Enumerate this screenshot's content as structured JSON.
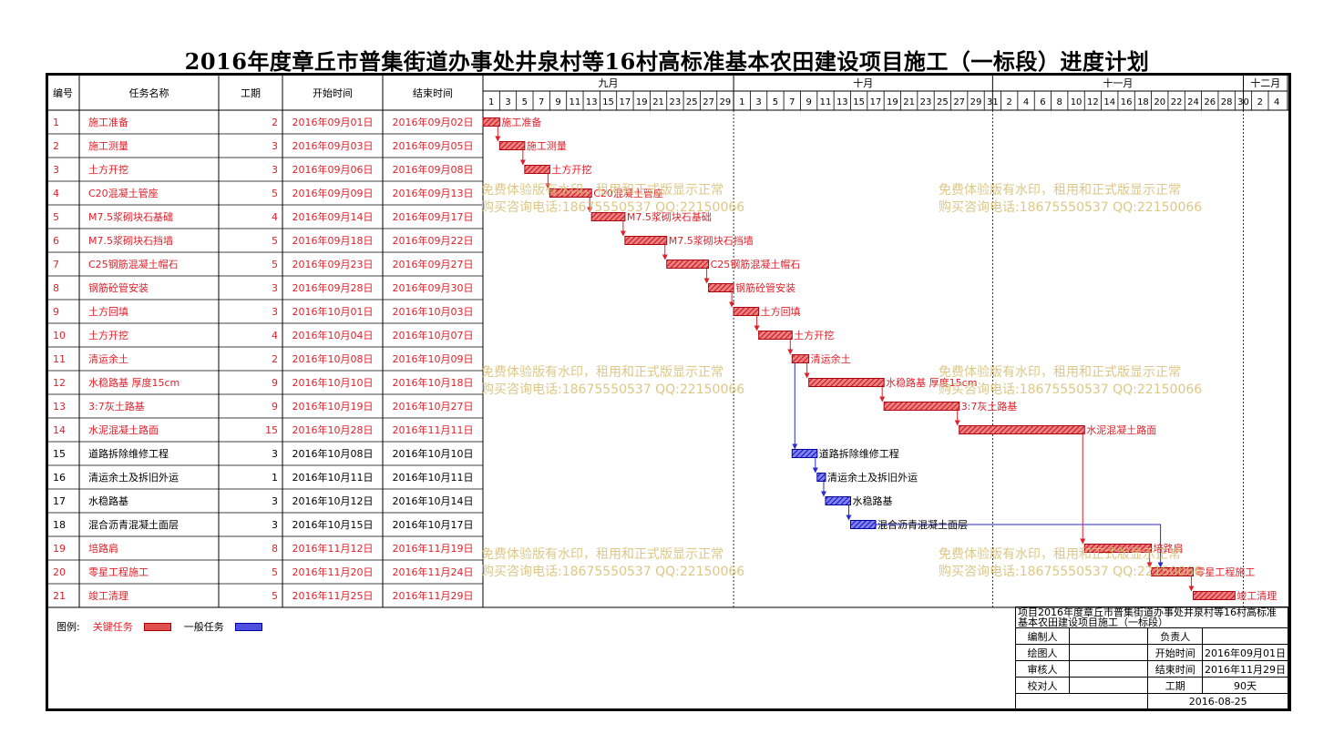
{
  "title": "2016年度章丘市普集街道办事处井泉村等16村高标准基本农田建设项目施工（一标段）进度计划",
  "colors": {
    "critical": "#e0202a",
    "general": "#2b2bd0",
    "watermark": "#d9c27a"
  },
  "table": {
    "headers": {
      "id": "编号",
      "name": "任务名称",
      "duration": "工期",
      "start": "开始时间",
      "end": "结束时间"
    }
  },
  "timeline": {
    "months": [
      "九月",
      "十月",
      "十一月",
      "十二月"
    ],
    "day_ticks": [
      {
        "m": 0,
        "d": [
          "1",
          "3",
          "5",
          "7",
          "9",
          "11",
          "13",
          "15",
          "17",
          "19",
          "21",
          "23",
          "25",
          "27",
          "29"
        ]
      },
      {
        "m": 1,
        "d": [
          "1",
          "3",
          "5",
          "7",
          "9",
          "11",
          "13",
          "15",
          "17",
          "19",
          "21",
          "23",
          "25",
          "27",
          "29",
          "31"
        ]
      },
      {
        "m": 2,
        "d": [
          "2",
          "4",
          "6",
          "8",
          "10",
          "12",
          "14",
          "16",
          "18",
          "20",
          "22",
          "24",
          "26",
          "28",
          "30"
        ]
      },
      {
        "m": 3,
        "d": [
          "2",
          "4"
        ]
      }
    ]
  },
  "chart_data": {
    "type": "gantt",
    "start_date": "2016-09-01",
    "tasks": [
      {
        "id": "1",
        "name": "施工准备",
        "duration": "2",
        "start": "2016年09月01日",
        "end": "2016年09月02日",
        "s": "2016-09-01",
        "e": "2016-09-02",
        "critical": true
      },
      {
        "id": "2",
        "name": "施工测量",
        "duration": "3",
        "start": "2016年09月03日",
        "end": "2016年09月05日",
        "s": "2016-09-03",
        "e": "2016-09-05",
        "critical": true
      },
      {
        "id": "3",
        "name": "土方开挖",
        "duration": "3",
        "start": "2016年09月06日",
        "end": "2016年09月08日",
        "s": "2016-09-06",
        "e": "2016-09-08",
        "critical": true
      },
      {
        "id": "4",
        "name": "C20混凝土管座",
        "duration": "5",
        "start": "2016年09月09日",
        "end": "2016年09月13日",
        "s": "2016-09-09",
        "e": "2016-09-13",
        "critical": true
      },
      {
        "id": "5",
        "name": "M7.5浆砌块石基础",
        "duration": "4",
        "start": "2016年09月14日",
        "end": "2016年09月17日",
        "s": "2016-09-14",
        "e": "2016-09-17",
        "critical": true
      },
      {
        "id": "6",
        "name": "M7.5浆砌块石挡墙",
        "duration": "5",
        "start": "2016年09月18日",
        "end": "2016年09月22日",
        "s": "2016-09-18",
        "e": "2016-09-22",
        "critical": true
      },
      {
        "id": "7",
        "name": "C25钢筋混凝土帽石",
        "duration": "5",
        "start": "2016年09月23日",
        "end": "2016年09月27日",
        "s": "2016-09-23",
        "e": "2016-09-27",
        "critical": true
      },
      {
        "id": "8",
        "name": "钢筋砼管安装",
        "duration": "3",
        "start": "2016年09月28日",
        "end": "2016年09月30日",
        "s": "2016-09-28",
        "e": "2016-09-30",
        "critical": true
      },
      {
        "id": "9",
        "name": "土方回填",
        "duration": "3",
        "start": "2016年10月01日",
        "end": "2016年10月03日",
        "s": "2016-10-01",
        "e": "2016-10-03",
        "critical": true
      },
      {
        "id": "10",
        "name": "土方开挖",
        "duration": "4",
        "start": "2016年10月04日",
        "end": "2016年10月07日",
        "s": "2016-10-04",
        "e": "2016-10-07",
        "critical": true
      },
      {
        "id": "11",
        "name": "清运余土",
        "duration": "2",
        "start": "2016年10月08日",
        "end": "2016年10月09日",
        "s": "2016-10-08",
        "e": "2016-10-09",
        "critical": true
      },
      {
        "id": "12",
        "name": "水稳路基 厚度15cm",
        "duration": "9",
        "start": "2016年10月10日",
        "end": "2016年10月18日",
        "s": "2016-10-10",
        "e": "2016-10-18",
        "critical": true
      },
      {
        "id": "13",
        "name": "3:7灰土路基",
        "duration": "9",
        "start": "2016年10月19日",
        "end": "2016年10月27日",
        "s": "2016-10-19",
        "e": "2016-10-27",
        "critical": true
      },
      {
        "id": "14",
        "name": "水泥混凝土路面",
        "duration": "15",
        "start": "2016年10月28日",
        "end": "2016年11月11日",
        "s": "2016-10-28",
        "e": "2016-11-11",
        "critical": true
      },
      {
        "id": "15",
        "name": "道路拆除维修工程",
        "duration": "3",
        "start": "2016年10月08日",
        "end": "2016年10月10日",
        "s": "2016-10-08",
        "e": "2016-10-10",
        "critical": false
      },
      {
        "id": "16",
        "name": "清运余土及拆旧外运",
        "duration": "1",
        "start": "2016年10月11日",
        "end": "2016年10月11日",
        "s": "2016-10-11",
        "e": "2016-10-11",
        "critical": false
      },
      {
        "id": "17",
        "name": "水稳路基",
        "duration": "3",
        "start": "2016年10月12日",
        "end": "2016年10月14日",
        "s": "2016-10-12",
        "e": "2016-10-14",
        "critical": false
      },
      {
        "id": "18",
        "name": "混合沥青混凝土面层",
        "duration": "3",
        "start": "2016年10月15日",
        "end": "2016年10月17日",
        "s": "2016-10-15",
        "e": "2016-10-17",
        "critical": false
      },
      {
        "id": "19",
        "name": "培路肩",
        "duration": "8",
        "start": "2016年11月12日",
        "end": "2016年11月19日",
        "s": "2016-11-12",
        "e": "2016-11-19",
        "critical": true
      },
      {
        "id": "20",
        "name": "零星工程施工",
        "duration": "5",
        "start": "2016年11月20日",
        "end": "2016年11月24日",
        "s": "2016-11-20",
        "e": "2016-11-24",
        "critical": true
      },
      {
        "id": "21",
        "name": "竣工清理",
        "duration": "5",
        "start": "2016年11月25日",
        "end": "2016年11月29日",
        "s": "2016-11-25",
        "e": "2016-11-29",
        "critical": true
      }
    ],
    "links": [
      [
        1,
        2
      ],
      [
        2,
        3
      ],
      [
        3,
        4
      ],
      [
        4,
        5
      ],
      [
        5,
        6
      ],
      [
        6,
        7
      ],
      [
        7,
        8
      ],
      [
        8,
        9
      ],
      [
        9,
        10
      ],
      [
        10,
        11
      ],
      [
        11,
        12
      ],
      [
        12,
        13
      ],
      [
        13,
        14
      ],
      [
        14,
        19
      ],
      [
        11,
        15
      ],
      [
        15,
        16
      ],
      [
        16,
        17
      ],
      [
        17,
        18
      ],
      [
        18,
        20
      ],
      [
        19,
        20
      ],
      [
        20,
        21
      ]
    ]
  },
  "watermark": {
    "line1": "免费体验版有水印，租用和正式版显示正常",
    "line2": "购买咨询电话:18675550537 QQ:22150066"
  },
  "legend": {
    "label": "图例:",
    "critical": "关键任务",
    "general": "一般任务"
  },
  "infobox": {
    "project": "项目2016年度章丘市普集街道办事处井泉村等16村高标准基本农田建设项目施工（一标段）",
    "compiler": "编制人",
    "leader": "负责人",
    "drawer": "绘图人",
    "start_label": "开始时间",
    "start_value": "2016年09月01日",
    "reviewer": "审核人",
    "end_label": "结束时间",
    "end_value": "2016年11月29日",
    "checker": "校对人",
    "duration_label": "工期",
    "duration_value": "90天",
    "date": "2016-08-25"
  }
}
